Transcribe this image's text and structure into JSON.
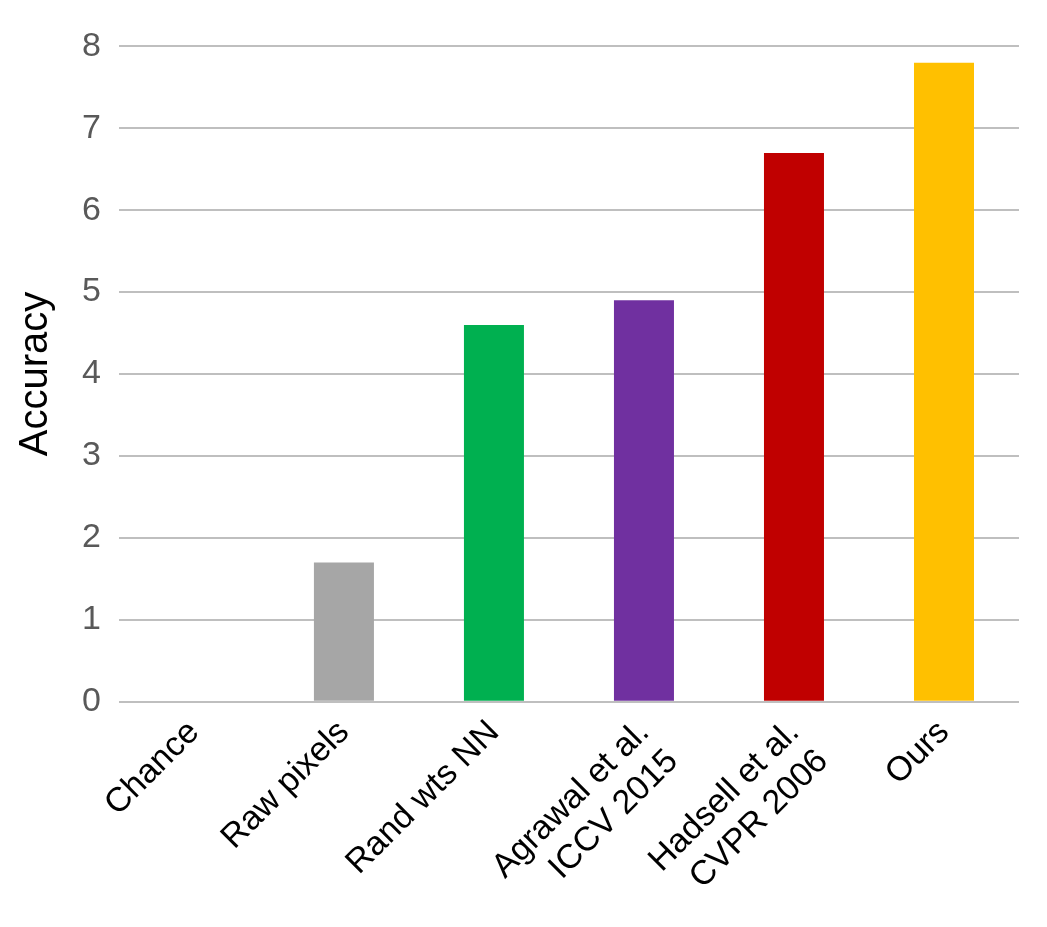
{
  "chart_data": {
    "type": "bar",
    "ylabel": "Accuracy",
    "categories": [
      "Chance",
      "Raw pixels",
      "Rand wts NN",
      "Agrawal et al.\nICCV 2015",
      "Hadsell et al.\nCVPR 2006",
      "Ours"
    ],
    "values": [
      0,
      1.7,
      4.6,
      4.9,
      6.7,
      7.8
    ],
    "colors": [
      "#000000",
      "#a6a6a6",
      "#00b050",
      "#7030a0",
      "#c00000",
      "#ffc000"
    ],
    "ylim": [
      0,
      8
    ],
    "yticks": [
      0,
      1,
      2,
      3,
      4,
      5,
      6,
      7,
      8
    ],
    "grid": "y",
    "legend": false
  }
}
